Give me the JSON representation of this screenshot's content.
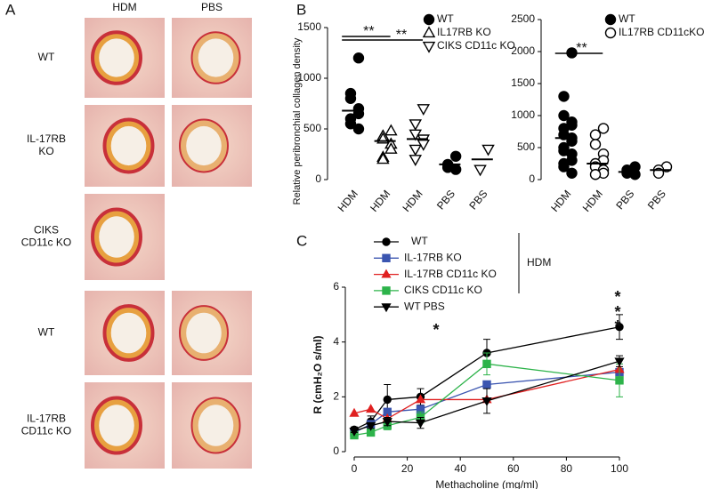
{
  "panel_labels": [
    "A",
    "B",
    "C"
  ],
  "panel_a": {
    "columns": [
      "HDM",
      "PBS"
    ],
    "rows": [
      "WT",
      "IL-17RB\nKO",
      "CIKS\nCD11c KO",
      "WT",
      "IL-17RB\nCD11c KO"
    ]
  },
  "chart_data": [
    {
      "type": "dot",
      "ylabel": "Relative peribronchial collagen density",
      "ylim": [
        0,
        1500
      ],
      "yticks": [
        0,
        500,
        1000,
        1500
      ],
      "legend": [
        {
          "name": "WT",
          "marker": "circle",
          "filled": true
        },
        {
          "name": "IL17RB KO",
          "marker": "triangle-up",
          "filled": false
        },
        {
          "name": "CIKS CD11c KO",
          "marker": "triangle-down",
          "filled": false
        }
      ],
      "significance": [
        "**",
        "**"
      ],
      "groups": [
        {
          "category": "HDM",
          "marker": "circle",
          "filled": true,
          "values": [
            1200,
            850,
            800,
            700,
            650,
            600,
            550,
            500
          ],
          "mean": 680
        },
        {
          "category": "HDM",
          "marker": "triangle-up",
          "filled": false,
          "values": [
            480,
            430,
            400,
            350,
            300,
            220,
            200
          ],
          "mean": 380
        },
        {
          "category": "HDM",
          "marker": "triangle-down",
          "filled": false,
          "values": [
            700,
            550,
            450,
            400,
            350,
            300,
            200
          ],
          "mean": 400
        },
        {
          "category": "PBS",
          "marker": "circle",
          "filled": true,
          "values": [
            230,
            150,
            120,
            100
          ],
          "mean": 150
        },
        {
          "category": "PBS",
          "marker": "triangle-down",
          "filled": false,
          "values": [
            300,
            100
          ],
          "mean": 200
        }
      ]
    },
    {
      "type": "dot",
      "ylim": [
        0,
        2500
      ],
      "yticks": [
        0,
        500,
        1000,
        1500,
        2000,
        2500
      ],
      "legend": [
        {
          "name": "WT",
          "marker": "circle",
          "filled": true
        },
        {
          "name": "IL17RB CD11cKO",
          "marker": "circle",
          "filled": false
        }
      ],
      "significance": [
        "**"
      ],
      "groups": [
        {
          "category": "HDM",
          "marker": "circle",
          "filled": true,
          "values": [
            1980,
            1300,
            1000,
            900,
            850,
            800,
            700,
            650,
            600,
            500,
            450,
            400,
            300,
            250,
            200,
            100
          ],
          "mean": 650
        },
        {
          "category": "HDM",
          "marker": "circle",
          "filled": false,
          "values": [
            800,
            700,
            550,
            400,
            300,
            250,
            200,
            150,
            100,
            80
          ],
          "mean": 250
        },
        {
          "category": "PBS",
          "marker": "circle",
          "filled": true,
          "values": [
            200,
            150,
            100,
            80
          ],
          "mean": 120
        },
        {
          "category": "PBS",
          "marker": "circle",
          "filled": false,
          "values": [
            200,
            150,
            100
          ],
          "mean": 150
        }
      ]
    },
    {
      "type": "line",
      "xlabel": "Methacholine (mg/ml)",
      "ylabel": "R (cmH₂O s/ml)",
      "xlim": [
        0,
        100
      ],
      "xticks": [
        0,
        20,
        40,
        60,
        80,
        100
      ],
      "ylim": [
        0,
        6
      ],
      "yticks": [
        0,
        2,
        4,
        6
      ],
      "x": [
        0,
        6.25,
        12.5,
        25,
        50,
        100
      ],
      "legend_group_label": "HDM",
      "series": [
        {
          "name": "WT",
          "color": "#000000",
          "marker": "circle",
          "values": [
            0.8,
            1.1,
            1.9,
            2.0,
            3.6,
            4.55
          ],
          "errors": [
            0.1,
            0.2,
            0.55,
            0.3,
            0.5,
            0.45
          ]
        },
        {
          "name": "IL-17RB KO",
          "color": "#3b55b0",
          "marker": "square",
          "values": [
            0.7,
            1.0,
            1.45,
            1.55,
            2.45,
            2.9
          ]
        },
        {
          "name": "IL-17RB CD11c KO",
          "color": "#e02020",
          "marker": "triangle-up",
          "values": [
            1.4,
            1.55,
            1.2,
            1.9,
            1.9,
            3.0
          ]
        },
        {
          "name": "CIKS CD11c KO",
          "color": "#2db34a",
          "marker": "square",
          "values": [
            0.6,
            0.7,
            0.95,
            1.25,
            3.2,
            2.6
          ],
          "errors": [
            0.05,
            0.1,
            0.15,
            0.2,
            0.4,
            0.6
          ]
        },
        {
          "name": "WT PBS",
          "color": "#000000",
          "marker": "triangle-down",
          "values": [
            0.75,
            0.95,
            1.1,
            1.05,
            1.85,
            3.3
          ],
          "errors": [
            0.05,
            0.1,
            0.15,
            0.2,
            0.45,
            0.2
          ]
        }
      ],
      "annotations": [
        {
          "text": "*",
          "color": "#e02020"
        },
        {
          "text": "*",
          "color": "#2db34a"
        },
        {
          "text": "*",
          "color": "#3b55b0"
        },
        {
          "text": "*",
          "color": "#e02020"
        }
      ]
    }
  ]
}
